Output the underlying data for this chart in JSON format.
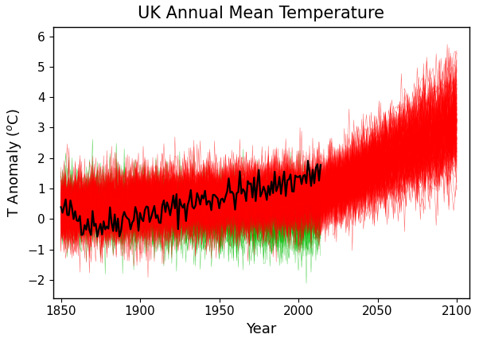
{
  "title": "UK Annual Mean Temperature",
  "xlabel": "Year",
  "ylabel": "T Anomaly (°C)",
  "xlim": [
    1845,
    2108
  ],
  "ylim": [
    -2.6,
    6.3
  ],
  "yticks": [
    -2,
    -1,
    0,
    1,
    2,
    3,
    4,
    5,
    6
  ],
  "xticks": [
    1850,
    1900,
    1950,
    2000,
    2050,
    2100
  ],
  "obs_start": 1850,
  "obs_end": 2014,
  "all_start": 1850,
  "all_end": 2100,
  "nat_start": 1850,
  "nat_end": 2014,
  "n_all_members": 120,
  "n_nat_members": 40,
  "obs_color": "#000000",
  "all_color": "#ff0000",
  "nat_color": "#00bb00",
  "obs_linewidth": 1.6,
  "ensemble_linewidth": 0.35,
  "ensemble_alpha": 0.6,
  "title_fontsize": 15,
  "label_fontsize": 13,
  "tick_fontsize": 11,
  "figsize": [
    6.02,
    4.3
  ],
  "dpi": 100,
  "background_color": "#ffffff",
  "obs_seed": 42,
  "all_seed": 7,
  "nat_seed": 13
}
